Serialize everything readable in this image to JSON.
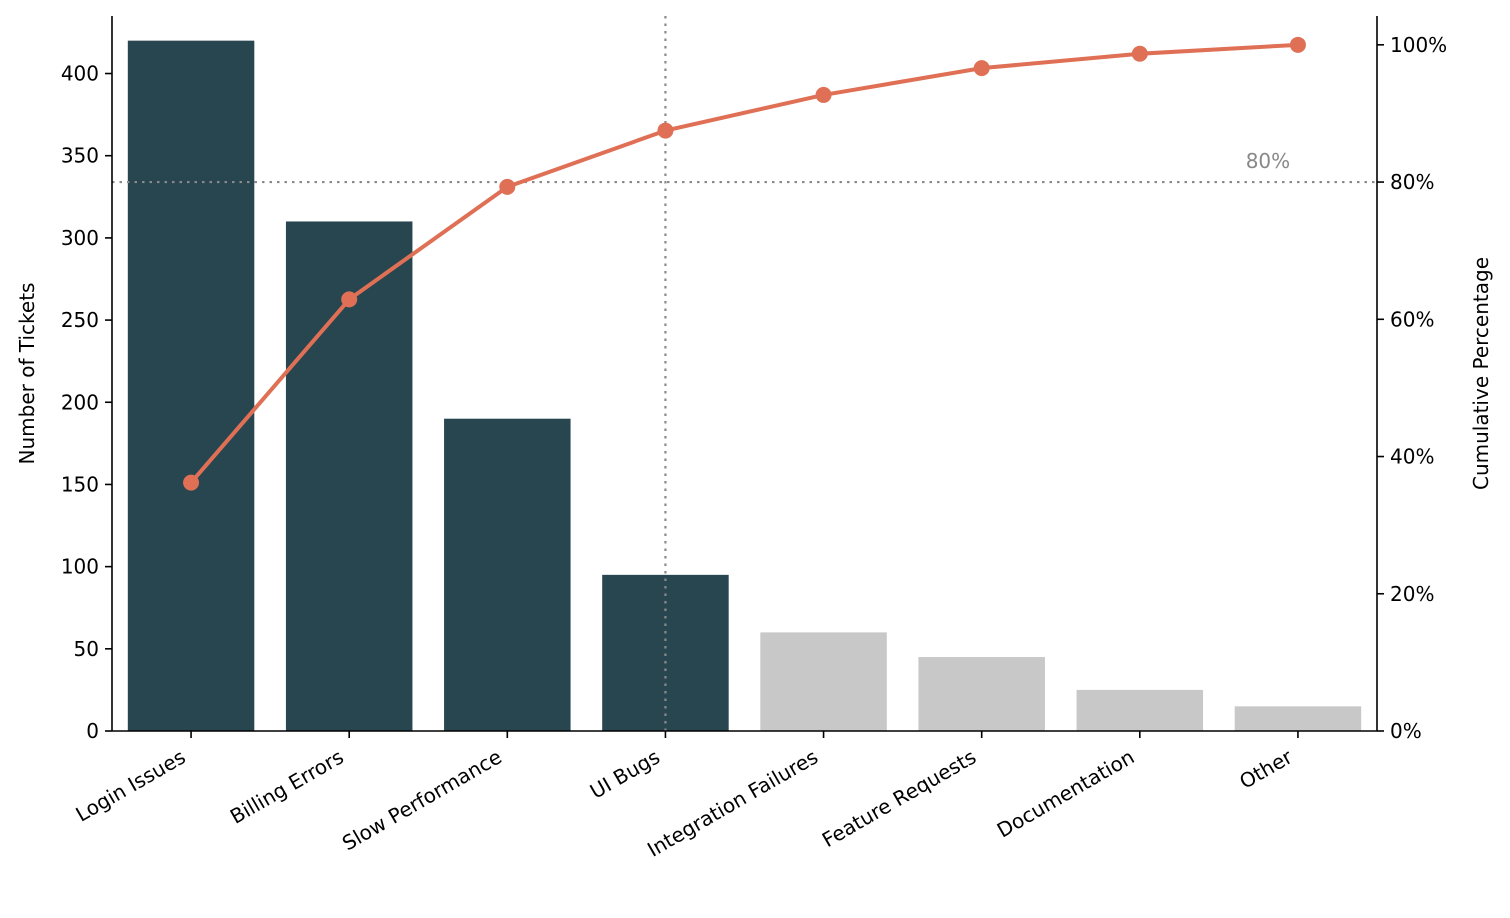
{
  "chart_data": {
    "type": "bar",
    "categories": [
      "Login Issues",
      "Billing Errors",
      "Slow Performance",
      "UI Bugs",
      "Integration Failures",
      "Feature Requests",
      "Documentation",
      "Other"
    ],
    "series": [
      {
        "values": [
          420,
          310,
          190,
          95,
          60,
          45,
          25,
          15
        ],
        "type": "bar"
      },
      {
        "values": [
          36.2,
          62.9,
          79.3,
          87.5,
          92.7,
          96.6,
          98.7,
          100.0
        ],
        "type": "line",
        "axis": "right"
      }
    ],
    "vital_few_count": 4,
    "xlabel": "",
    "ylabel": "Number of Tickets",
    "ylabel_right": "Cumulative Percentage",
    "ylim": [
      0,
      435
    ],
    "ylim_right": [
      0,
      104.2
    ],
    "yticks": [
      "0",
      "50",
      "100",
      "150",
      "200",
      "250",
      "300",
      "350",
      "400"
    ],
    "yticks_right": [
      "0%",
      "20%",
      "40%",
      "60%",
      "80%",
      "100%"
    ],
    "reference_line": {
      "value": 80,
      "label": "80%"
    },
    "grid": false,
    "legend": "none",
    "colors": {
      "vital_bars": "#28464f",
      "trivial_bars": "#c8c8c8",
      "cumulative_line": "#e07055",
      "reference": "#8a8a8a",
      "reference_label": "#888888"
    }
  }
}
